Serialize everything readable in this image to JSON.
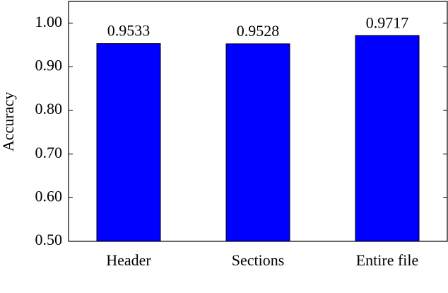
{
  "chart_data": {
    "type": "bar",
    "y_label": "Accuracy",
    "categories": [
      "Header",
      "Sections",
      "Entire file"
    ],
    "values": [
      0.9533,
      0.9528,
      0.9717
    ],
    "color": "#0000ff",
    "ylim": [
      0.5,
      1.05
    ],
    "yticks": [
      {
        "value": 0.5,
        "label": "0.50"
      },
      {
        "value": 0.6,
        "label": "0.60"
      },
      {
        "value": 0.7,
        "label": "0.70"
      },
      {
        "value": 0.8,
        "label": "0.80"
      },
      {
        "value": 0.9,
        "label": "0.90"
      },
      {
        "value": 1,
        "label": "1.00"
      }
    ],
    "grid": false
  }
}
